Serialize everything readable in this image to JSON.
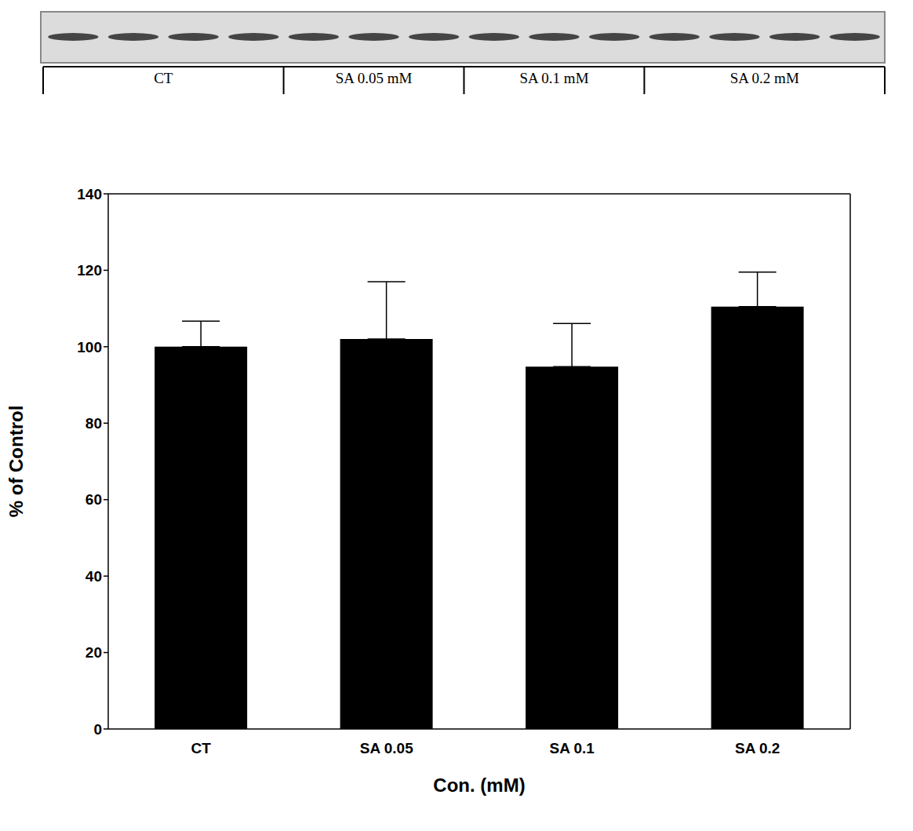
{
  "chart_data": {
    "type": "bar",
    "categories": [
      "CT",
      "SA 0.05",
      "SA 0.1",
      "SA 0.2"
    ],
    "values": [
      100,
      102,
      94.8,
      110.5
    ],
    "errors": [
      6.7,
      15,
      11.3,
      9
    ],
    "color": "#000000",
    "ylim": [
      0,
      140
    ],
    "yticks": [
      0,
      20,
      40,
      60,
      80,
      100,
      120,
      140
    ],
    "x_label": "Con. (mM)",
    "y_label": "% of Control",
    "grid": false
  },
  "blot": {
    "groups": [
      {
        "label": "CT",
        "lanes": 4
      },
      {
        "label": "SA 0.05 mM",
        "lanes": 3
      },
      {
        "label": "SA 0.1 mM",
        "lanes": 3
      },
      {
        "label": "SA 0.2 mM",
        "lanes": 4
      }
    ]
  }
}
